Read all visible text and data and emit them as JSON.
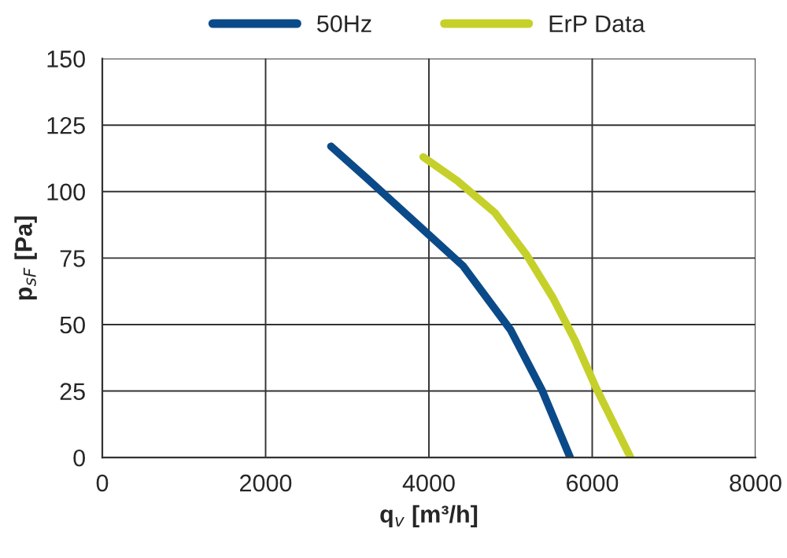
{
  "chart_data": {
    "type": "line",
    "xlabel": "q$_{v}$ [m³/h]",
    "ylabel": "p$_{sF}$ [Pa]",
    "xlim": [
      0,
      8000
    ],
    "xticks": [
      0,
      2000,
      4000,
      6000,
      8000
    ],
    "ylim": [
      0,
      150
    ],
    "yticks": [
      0,
      25,
      50,
      75,
      100,
      125,
      150
    ],
    "grid": true,
    "legend": "top",
    "marker": "none",
    "line_style": "solid",
    "series": [
      {
        "name": "50Hz",
        "color": "#0b4a88",
        "x": [
          2800,
          3240,
          3990,
          4420,
          5000,
          5390,
          5730
        ],
        "values": [
          117,
          105,
          84,
          72,
          48,
          25,
          0
        ]
      },
      {
        "name": "ErP Data",
        "color": "#c5d12a",
        "x": [
          3930,
          4350,
          4810,
          5200,
          5520,
          5790,
          6050,
          6470
        ],
        "values": [
          113,
          104,
          92,
          76,
          60,
          44,
          26,
          0
        ]
      }
    ]
  }
}
